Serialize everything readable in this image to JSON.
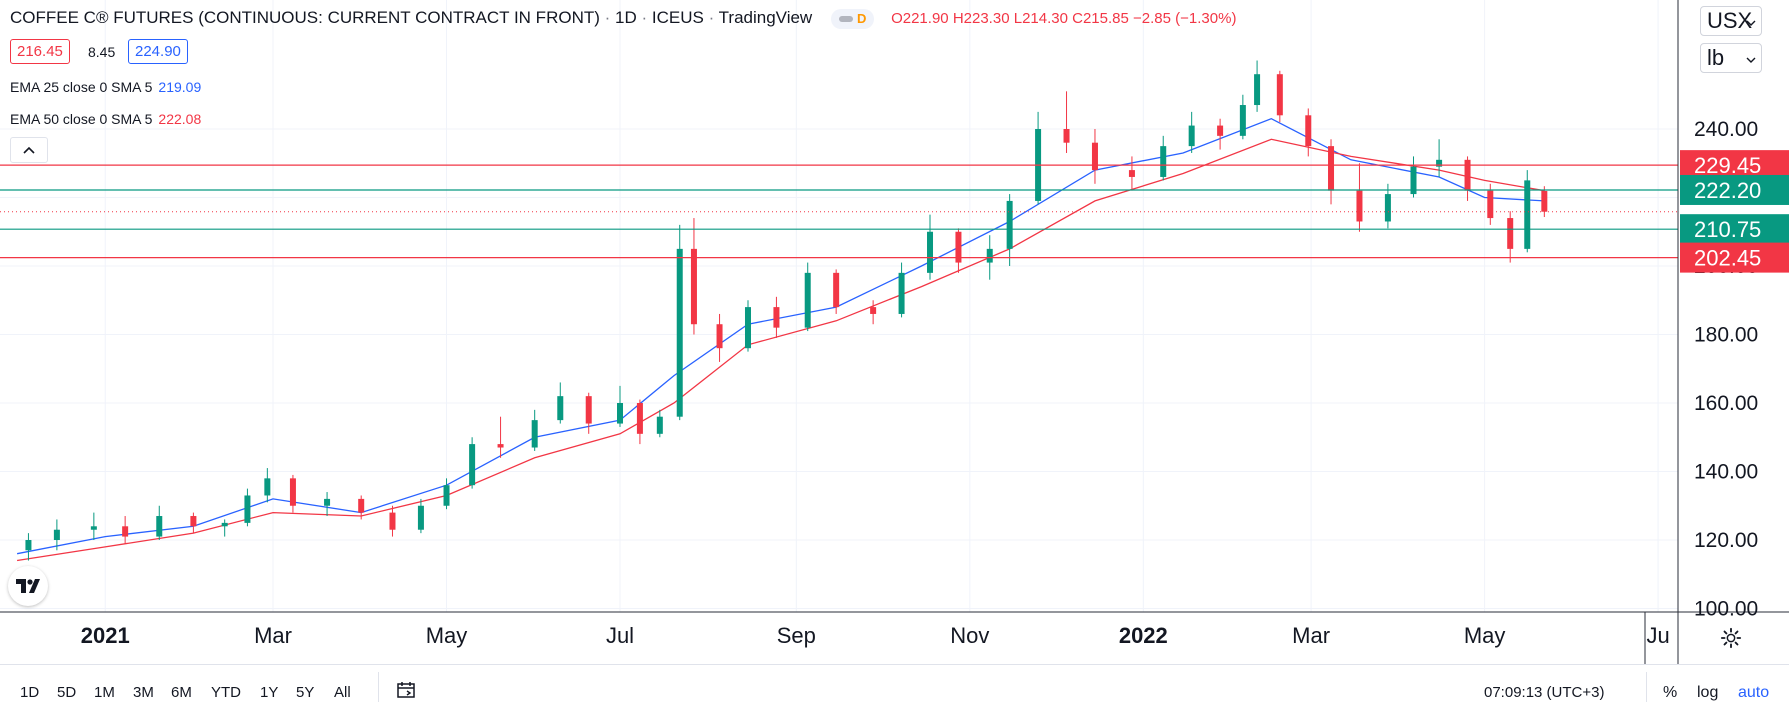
{
  "header": {
    "title": "COFFEE C® FUTURES (CONTINUOUS: CURRENT CONTRACT IN FRONT)",
    "interval": "1D",
    "exchange": "ICEUS",
    "source": "TradingView",
    "badge_letter": "D",
    "ohlc": {
      "o_label": "O",
      "o": "221.90",
      "h_label": "H",
      "h": "223.30",
      "l_label": "L",
      "l": "214.30",
      "c_label": "C",
      "c": "215.85",
      "change": "−2.85 (−1.30%)"
    },
    "bid": "216.45",
    "spread": "8.45",
    "ask": "224.90",
    "currency": "USX",
    "unit": "lb"
  },
  "indicators": [
    {
      "label": "EMA 25 close 0 SMA 5",
      "value": "219.09",
      "color": "#2962ff"
    },
    {
      "label": "EMA 50 close 0 SMA 5",
      "value": "222.08",
      "color": "#f23645"
    }
  ],
  "colors": {
    "up": "#089981",
    "down": "#f23645",
    "ema25": "#2962ff",
    "ema50": "#f23645",
    "red_level": "#f23645",
    "green_level": "#089981",
    "grid": "#f0f3fa"
  },
  "chart_data": {
    "type": "line",
    "series": [
      {
        "name": "EMA 25 close 0 SMA 5",
        "x": [
          "2020-12-01",
          "2021-01-01",
          "2021-02-01",
          "2021-03-01",
          "2021-04-01",
          "2021-05-01",
          "2021-06-01",
          "2021-07-01",
          "2021-07-20",
          "2021-08-15",
          "2021-09-15",
          "2021-10-15",
          "2021-11-15",
          "2021-12-15",
          "2022-01-15",
          "2022-02-15",
          "2022-03-15",
          "2022-04-15",
          "2022-05-01",
          "2022-05-22"
        ],
        "values": [
          116,
          121,
          124,
          132,
          128,
          136,
          150,
          155,
          168,
          183,
          188,
          200,
          213,
          228,
          233,
          243,
          231,
          226,
          220,
          219
        ]
      },
      {
        "name": "EMA 50 close 0 SMA 5",
        "x": [
          "2020-12-01",
          "2021-01-01",
          "2021-02-01",
          "2021-03-01",
          "2021-04-01",
          "2021-05-01",
          "2021-06-01",
          "2021-07-01",
          "2021-07-20",
          "2021-08-15",
          "2021-09-15",
          "2021-10-15",
          "2021-11-15",
          "2021-12-15",
          "2022-01-15",
          "2022-02-15",
          "2022-03-15",
          "2022-04-15",
          "2022-05-01",
          "2022-05-22"
        ],
        "values": [
          114,
          118,
          122,
          128,
          127,
          133,
          144,
          151,
          160,
          177,
          184,
          194,
          205,
          219,
          227,
          237,
          232,
          228,
          225,
          222
        ]
      }
    ],
    "candles": [
      {
        "x": "2020-12-05",
        "o": 117,
        "h": 122,
        "l": 114,
        "c": 120
      },
      {
        "x": "2020-12-15",
        "o": 120,
        "h": 126,
        "l": 117,
        "c": 123
      },
      {
        "x": "2020-12-28",
        "o": 123,
        "h": 128,
        "l": 120,
        "c": 124
      },
      {
        "x": "2021-01-08",
        "o": 124,
        "h": 127,
        "l": 119,
        "c": 121
      },
      {
        "x": "2021-01-20",
        "o": 121,
        "h": 130,
        "l": 120,
        "c": 127
      },
      {
        "x": "2021-02-01",
        "o": 127,
        "h": 128,
        "l": 122,
        "c": 124
      },
      {
        "x": "2021-02-12",
        "o": 124,
        "h": 126,
        "l": 121,
        "c": 125
      },
      {
        "x": "2021-02-20",
        "o": 125,
        "h": 135,
        "l": 124,
        "c": 133
      },
      {
        "x": "2021-02-27",
        "o": 133,
        "h": 141,
        "l": 131,
        "c": 138
      },
      {
        "x": "2021-03-08",
        "o": 138,
        "h": 139,
        "l": 128,
        "c": 130
      },
      {
        "x": "2021-03-20",
        "o": 130,
        "h": 134,
        "l": 127,
        "c": 132
      },
      {
        "x": "2021-04-01",
        "o": 132,
        "h": 133,
        "l": 126,
        "c": 128
      },
      {
        "x": "2021-04-12",
        "o": 128,
        "h": 130,
        "l": 121,
        "c": 123
      },
      {
        "x": "2021-04-22",
        "o": 123,
        "h": 132,
        "l": 122,
        "c": 130
      },
      {
        "x": "2021-05-01",
        "o": 130,
        "h": 138,
        "l": 129,
        "c": 136
      },
      {
        "x": "2021-05-10",
        "o": 136,
        "h": 150,
        "l": 135,
        "c": 148
      },
      {
        "x": "2021-05-20",
        "o": 148,
        "h": 156,
        "l": 144,
        "c": 147
      },
      {
        "x": "2021-06-01",
        "o": 147,
        "h": 158,
        "l": 146,
        "c": 155
      },
      {
        "x": "2021-06-10",
        "o": 155,
        "h": 166,
        "l": 154,
        "c": 162
      },
      {
        "x": "2021-06-20",
        "o": 162,
        "h": 163,
        "l": 151,
        "c": 154
      },
      {
        "x": "2021-07-01",
        "o": 154,
        "h": 165,
        "l": 153,
        "c": 160
      },
      {
        "x": "2021-07-08",
        "o": 160,
        "h": 161,
        "l": 148,
        "c": 151
      },
      {
        "x": "2021-07-15",
        "o": 151,
        "h": 158,
        "l": 150,
        "c": 156
      },
      {
        "x": "2021-07-22",
        "o": 156,
        "h": 212,
        "l": 155,
        "c": 205
      },
      {
        "x": "2021-07-27",
        "o": 205,
        "h": 214,
        "l": 180,
        "c": 183
      },
      {
        "x": "2021-08-05",
        "o": 183,
        "h": 186,
        "l": 172,
        "c": 176
      },
      {
        "x": "2021-08-15",
        "o": 176,
        "h": 190,
        "l": 175,
        "c": 188
      },
      {
        "x": "2021-08-25",
        "o": 188,
        "h": 191,
        "l": 179,
        "c": 182
      },
      {
        "x": "2021-09-05",
        "o": 182,
        "h": 201,
        "l": 181,
        "c": 198
      },
      {
        "x": "2021-09-15",
        "o": 198,
        "h": 199,
        "l": 186,
        "c": 188
      },
      {
        "x": "2021-09-28",
        "o": 188,
        "h": 190,
        "l": 183,
        "c": 186
      },
      {
        "x": "2021-10-08",
        "o": 186,
        "h": 201,
        "l": 185,
        "c": 198
      },
      {
        "x": "2021-10-18",
        "o": 198,
        "h": 215,
        "l": 196,
        "c": 210
      },
      {
        "x": "2021-10-28",
        "o": 210,
        "h": 211,
        "l": 198,
        "c": 201
      },
      {
        "x": "2021-11-08",
        "o": 201,
        "h": 209,
        "l": 196,
        "c": 205
      },
      {
        "x": "2021-11-15",
        "o": 205,
        "h": 221,
        "l": 200,
        "c": 219
      },
      {
        "x": "2021-11-25",
        "o": 219,
        "h": 245,
        "l": 218,
        "c": 240
      },
      {
        "x": "2021-12-05",
        "o": 240,
        "h": 251,
        "l": 233,
        "c": 236
      },
      {
        "x": "2021-12-15",
        "o": 236,
        "h": 240,
        "l": 224,
        "c": 228
      },
      {
        "x": "2021-12-28",
        "o": 228,
        "h": 232,
        "l": 222,
        "c": 226
      },
      {
        "x": "2022-01-08",
        "o": 226,
        "h": 238,
        "l": 225,
        "c": 235
      },
      {
        "x": "2022-01-18",
        "o": 235,
        "h": 245,
        "l": 233,
        "c": 241
      },
      {
        "x": "2022-01-28",
        "o": 241,
        "h": 243,
        "l": 234,
        "c": 238
      },
      {
        "x": "2022-02-05",
        "o": 238,
        "h": 250,
        "l": 237,
        "c": 247
      },
      {
        "x": "2022-02-10",
        "o": 247,
        "h": 260,
        "l": 245,
        "c": 256
      },
      {
        "x": "2022-02-18",
        "o": 256,
        "h": 257,
        "l": 242,
        "c": 244
      },
      {
        "x": "2022-02-28",
        "o": 244,
        "h": 246,
        "l": 232,
        "c": 235
      },
      {
        "x": "2022-03-08",
        "o": 235,
        "h": 237,
        "l": 218,
        "c": 222
      },
      {
        "x": "2022-03-18",
        "o": 222,
        "h": 230,
        "l": 210,
        "c": 213
      },
      {
        "x": "2022-03-28",
        "o": 213,
        "h": 224,
        "l": 211,
        "c": 221
      },
      {
        "x": "2022-04-06",
        "o": 221,
        "h": 232,
        "l": 220,
        "c": 229
      },
      {
        "x": "2022-04-15",
        "o": 229,
        "h": 237,
        "l": 226,
        "c": 231
      },
      {
        "x": "2022-04-25",
        "o": 231,
        "h": 232,
        "l": 219,
        "c": 222
      },
      {
        "x": "2022-05-03",
        "o": 222,
        "h": 224,
        "l": 212,
        "c": 214
      },
      {
        "x": "2022-05-10",
        "o": 214,
        "h": 216,
        "l": 201,
        "c": 205
      },
      {
        "x": "2022-05-16",
        "o": 205,
        "h": 228,
        "l": 204,
        "c": 225
      },
      {
        "x": "2022-05-22",
        "o": 221.9,
        "h": 223.3,
        "l": 214.3,
        "c": 215.85
      }
    ],
    "levels": [
      {
        "value": 229.45,
        "label": "229.45",
        "color": "#f23645"
      },
      {
        "value": 222.2,
        "label": "222.20",
        "color": "#089981"
      },
      {
        "value": 210.75,
        "label": "210.75",
        "color": "#089981"
      },
      {
        "value": 202.45,
        "label": "202.45",
        "color": "#f23645"
      }
    ],
    "last_price": 215.85,
    "y_ticks": [
      "100.00",
      "120.00",
      "140.00",
      "160.00",
      "180.00",
      "200.00",
      "220.00",
      "240.00"
    ],
    "ylim": [
      100,
      260
    ],
    "x_ticks": [
      {
        "label": "2021",
        "x": "2021-01-01",
        "bold": true
      },
      {
        "label": "Mar",
        "x": "2021-03-01",
        "bold": false
      },
      {
        "label": "May",
        "x": "2021-05-01",
        "bold": false
      },
      {
        "label": "Jul",
        "x": "2021-07-01",
        "bold": false
      },
      {
        "label": "Sep",
        "x": "2021-09-01",
        "bold": false
      },
      {
        "label": "Nov",
        "x": "2021-11-01",
        "bold": false
      },
      {
        "label": "2022",
        "x": "2022-01-01",
        "bold": true
      },
      {
        "label": "Mar",
        "x": "2022-03-01",
        "bold": false
      },
      {
        "label": "May",
        "x": "2022-05-01",
        "bold": false
      },
      {
        "label": "Ju",
        "x": "2022-07-01",
        "bold": false
      }
    ],
    "xlim": [
      "2020-11-25",
      "2022-07-08"
    ],
    "grid": true,
    "title": "COFFEE C® FUTURES (CONTINUOUS: CURRENT CONTRACT IN FRONT)",
    "xlabel": "",
    "ylabel": ""
  },
  "bottom": {
    "timeframes": [
      "1D",
      "5D",
      "1M",
      "3M",
      "6M",
      "YTD",
      "1Y",
      "5Y",
      "All"
    ],
    "clock": "07:09:13 (UTC+3)",
    "percent": "%",
    "log": "log",
    "auto": "auto"
  }
}
